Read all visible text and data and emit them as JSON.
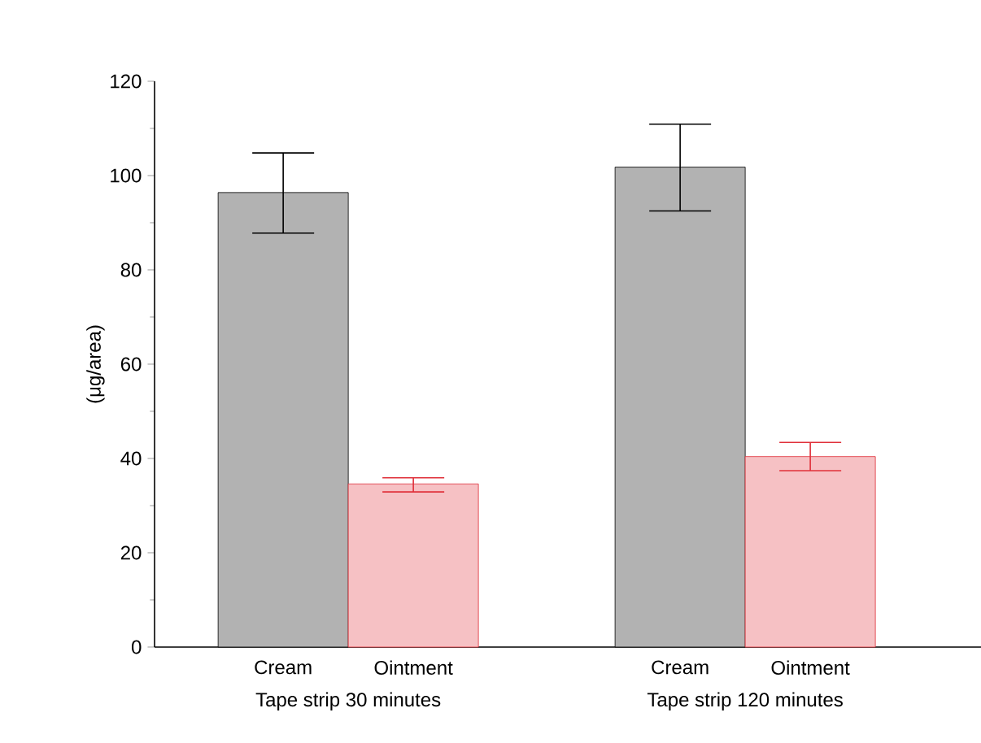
{
  "chart_data": {
    "type": "bar",
    "ylabel": "(μg/area)",
    "categories": [
      "Tape strip 30 minutes",
      "Tape strip 120 minutes"
    ],
    "series": [
      {
        "name": "Cream",
        "color": "#000000",
        "values": [
          96.4,
          101.8
        ],
        "errors": [
          [
            87.8,
            104.8
          ],
          [
            92.5,
            110.9
          ]
        ]
      },
      {
        "name": "Ointment",
        "color": "#e0303a",
        "values": [
          34.6,
          40.4
        ],
        "errors": [
          [
            32.9,
            35.9
          ],
          [
            37.4,
            43.4
          ]
        ]
      }
    ],
    "ylim": [
      0,
      120
    ],
    "yticks": [
      0,
      20,
      40,
      60,
      80,
      100,
      120
    ],
    "grid": false,
    "legend": false
  }
}
